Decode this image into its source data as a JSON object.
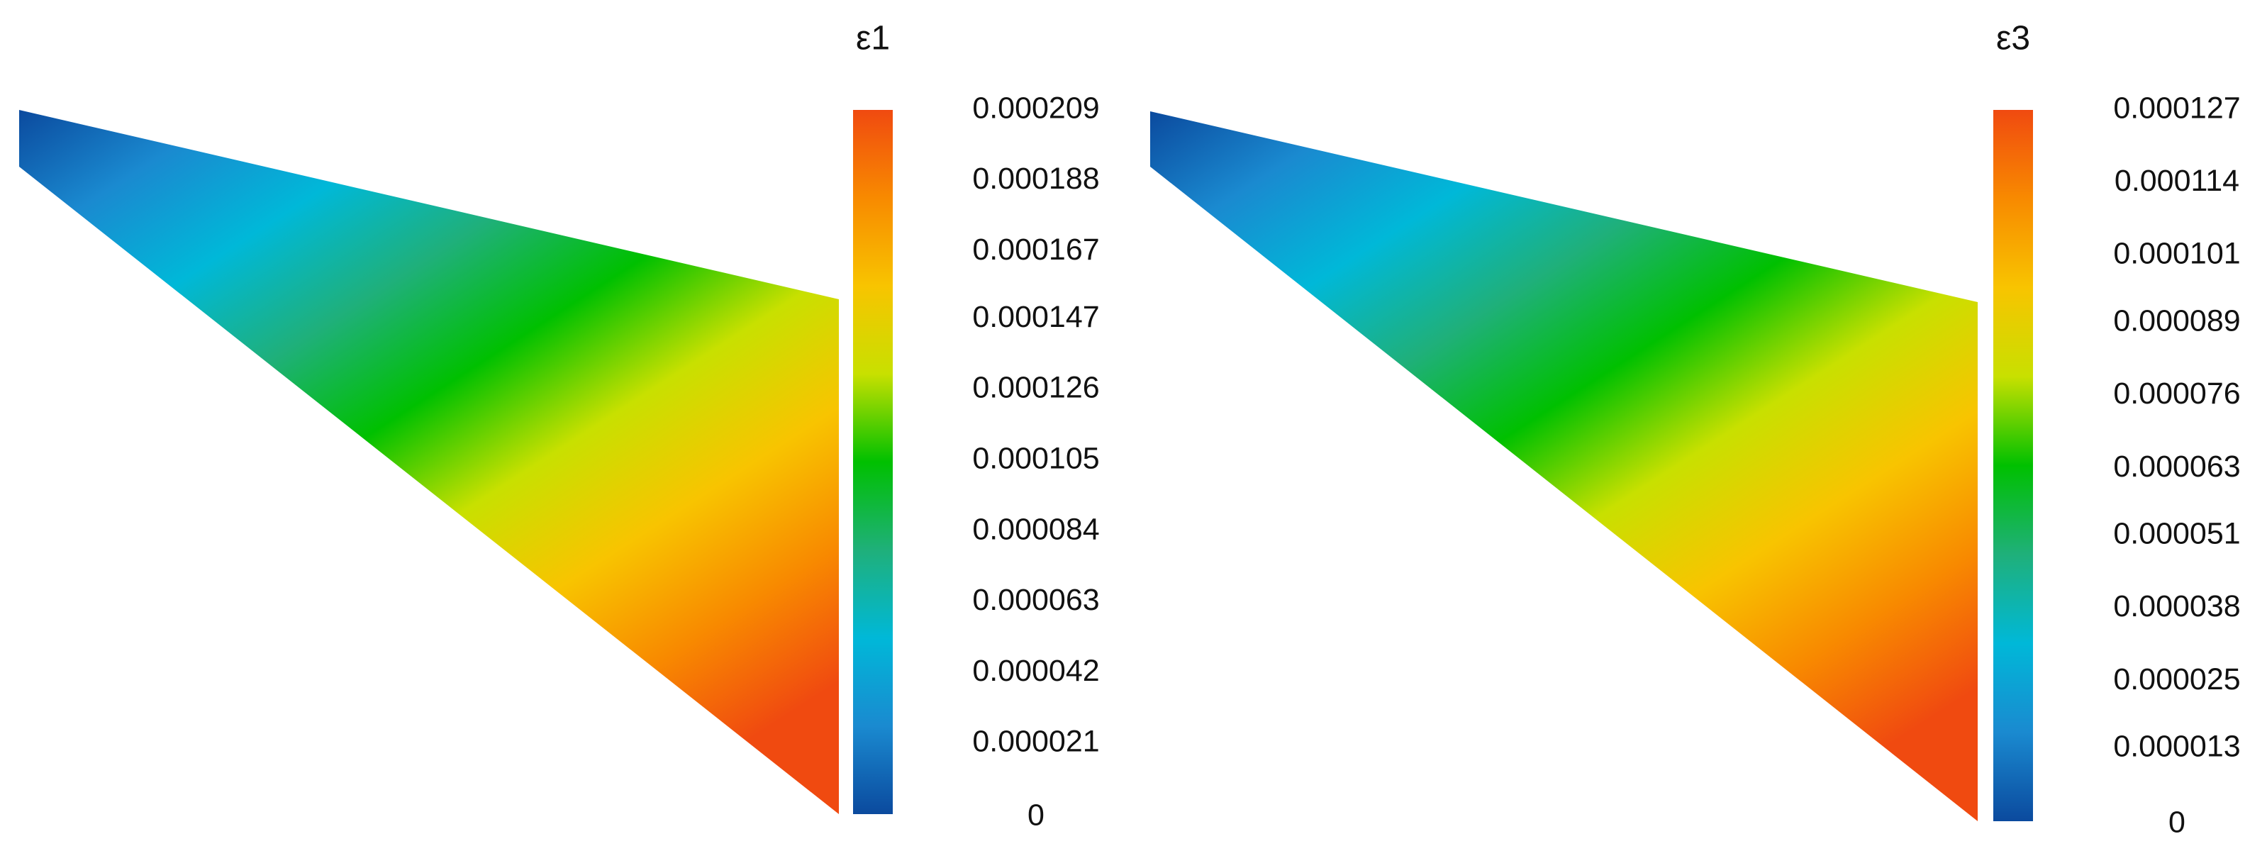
{
  "chart_data": [
    {
      "type": "contour",
      "title": "ε1",
      "clim": [
        0,
        0.000209
      ],
      "cticks": [
        0,
        2.1e-05,
        4.2e-05,
        6.3e-05,
        8.4e-05,
        0.000105,
        0.000126,
        0.000147,
        0.000167,
        0.000188,
        0.000209
      ],
      "colormap": [
        "#0b4a9e",
        "#1a8ad0",
        "#00b8d8",
        "#1fb07a",
        "#00c000",
        "#c8e000",
        "#f8c400",
        "#f88a00",
        "#f04a10"
      ]
    },
    {
      "type": "contour",
      "title": "ε3",
      "clim": [
        0,
        0.000127
      ],
      "cticks": [
        0,
        1.3e-05,
        2.5e-05,
        3.8e-05,
        5.1e-05,
        6.3e-05,
        7.6e-05,
        8.9e-05,
        0.000101,
        0.000114,
        0.000127
      ],
      "colormap": [
        "#0b4a9e",
        "#1a8ad0",
        "#00b8d8",
        "#1fb07a",
        "#00c000",
        "#c8e000",
        "#f8c400",
        "#f88a00",
        "#f04a10"
      ]
    }
  ]
}
